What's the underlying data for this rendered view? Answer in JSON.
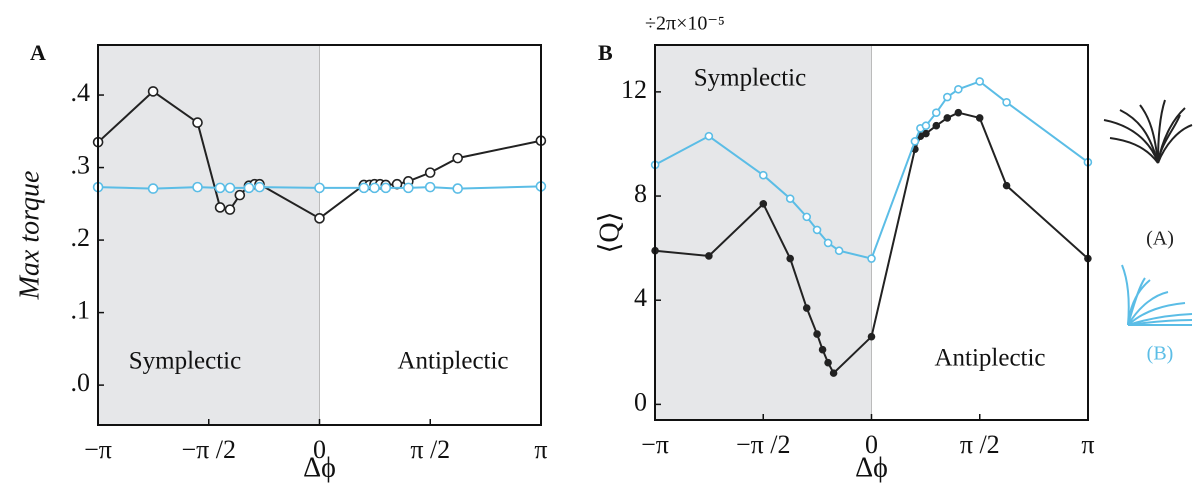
{
  "chart_data": [
    {
      "type": "line",
      "panel_label": "A",
      "xlabel": "Δϕ",
      "ylabel": "Max torque",
      "xlim": [
        -3.14159,
        3.14159
      ],
      "ylim": [
        -0.055,
        0.469
      ],
      "xticks": [
        {
          "value": -3.14159,
          "label": "−π"
        },
        {
          "value": -1.5708,
          "label": "−π /2"
        },
        0,
        {
          "value": 1.5708,
          "label": "π /2"
        },
        {
          "value": 3.14159,
          "label": "π"
        }
      ],
      "yticks": [
        {
          "value": 0,
          "label": ".0"
        },
        {
          "value": 0.1,
          "label": ".1"
        },
        {
          "value": 0.2,
          "label": ".2"
        },
        {
          "value": 0.3,
          "label": ".3"
        },
        {
          "value": 0.4,
          "label": ".4"
        }
      ],
      "shaded_xrange": [
        -3.14159,
        0
      ],
      "annotations": [
        "Symplectic",
        "Antiplectic"
      ],
      "series": [
        {
          "color": "#222222",
          "marker": "open",
          "x": [
            -3.14,
            -2.36,
            -1.73,
            -1.41,
            -1.27,
            -1.13,
            -1.0,
            -0.92,
            -0.85,
            0,
            0.63,
            0.71,
            0.78,
            0.86,
            0.94,
            1.1,
            1.26,
            1.57,
            1.96,
            3.14
          ],
          "values": [
            0.335,
            0.405,
            0.362,
            0.245,
            0.242,
            0.262,
            0.275,
            0.277,
            0.277,
            0.23,
            0.276,
            0.276,
            0.277,
            0.277,
            0.276,
            0.277,
            0.281,
            0.293,
            0.313,
            0.337
          ]
        },
        {
          "color": "#5bbde6",
          "marker": "open",
          "x": [
            -3.14,
            -2.36,
            -1.73,
            -1.41,
            -1.27,
            -1.0,
            -0.85,
            0,
            0.63,
            0.78,
            0.94,
            1.26,
            1.57,
            1.96,
            3.14
          ],
          "values": [
            0.273,
            0.271,
            0.273,
            0.272,
            0.272,
            0.272,
            0.273,
            0.272,
            0.272,
            0.272,
            0.272,
            0.272,
            0.273,
            0.271,
            0.274
          ]
        }
      ]
    },
    {
      "type": "line",
      "panel_label": "B",
      "xlabel": "Δϕ",
      "ylabel": "⟨Q⟩",
      "y_multiplier": "÷2π×10⁻⁵",
      "xlim": [
        -3.14159,
        3.14159
      ],
      "ylim": [
        -0.6,
        13.8
      ],
      "xticks": [
        {
          "value": -3.14159,
          "label": "−π"
        },
        {
          "value": -1.5708,
          "label": "−π /2"
        },
        0,
        {
          "value": 1.5708,
          "label": "π /2"
        },
        {
          "value": 3.14159,
          "label": "π"
        }
      ],
      "yticks": [
        0,
        4,
        8,
        12
      ],
      "shaded_xrange": [
        -3.14159,
        0
      ],
      "annotations": [
        "Symplectic",
        "Antiplectic"
      ],
      "series": [
        {
          "name": "(A)",
          "color": "#222222",
          "marker": "filled",
          "x": [
            -3.14,
            -2.36,
            -1.57,
            -1.18,
            -0.94,
            -0.79,
            -0.71,
            -0.63,
            -0.55,
            0,
            0.63,
            0.71,
            0.79,
            0.94,
            1.1,
            1.26,
            1.57,
            1.96,
            3.14
          ],
          "values": [
            5.9,
            5.7,
            7.7,
            5.6,
            3.7,
            2.7,
            2.1,
            1.6,
            1.2,
            2.6,
            9.8,
            10.3,
            10.4,
            10.7,
            11.0,
            11.2,
            11.0,
            8.4,
            5.6
          ]
        },
        {
          "name": "(B)",
          "color": "#5bbde6",
          "marker": "open",
          "x": [
            -3.14,
            -2.36,
            -1.57,
            -1.18,
            -0.94,
            -0.79,
            -0.63,
            -0.47,
            0,
            0.63,
            0.71,
            0.79,
            0.94,
            1.1,
            1.26,
            1.57,
            1.96,
            3.14
          ],
          "values": [
            9.2,
            10.3,
            8.8,
            7.9,
            7.2,
            6.7,
            6.2,
            5.9,
            5.6,
            10.1,
            10.6,
            10.7,
            11.2,
            11.8,
            12.1,
            12.4,
            11.6,
            9.3
          ]
        }
      ]
    }
  ]
}
